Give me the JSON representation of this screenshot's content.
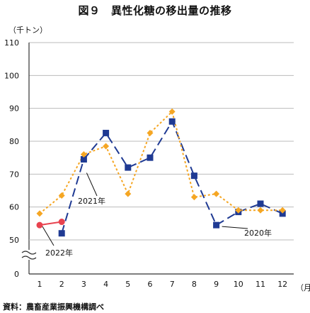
{
  "header": {
    "title": "図９　異性化糖の移出量の推移"
  },
  "axes": {
    "y_unit": "（千トン）",
    "x_unit": "（月）"
  },
  "footer": {
    "source": "資料：農畜産業振興機構調べ"
  },
  "colors": {
    "s2020": "#1f3a93",
    "s2021": "#f5a623",
    "s2022": "#e8434f",
    "grid": "#bbbbbb"
  },
  "chart_data": {
    "type": "line",
    "x": [
      1,
      2,
      3,
      4,
      5,
      6,
      7,
      8,
      9,
      10,
      11,
      12
    ],
    "xlim": [
      1,
      12
    ],
    "ylim": [
      50,
      110
    ],
    "y_axis_break": true,
    "y_ticks": [
      50,
      60,
      70,
      80,
      90,
      100,
      110
    ],
    "y_tick_labels": [
      "50",
      "60",
      "70",
      "80",
      "90",
      "100",
      "110"
    ],
    "zero_label": "0",
    "grid": true,
    "series": [
      {
        "name": "2020年",
        "style": "dashed",
        "marker": "square",
        "color": "#1f3a93",
        "values": [
          null,
          52,
          74.5,
          82.5,
          72,
          75,
          86,
          69.5,
          54.5,
          58.5,
          61,
          58
        ]
      },
      {
        "name": "2021年",
        "style": "dotted",
        "marker": "diamond",
        "color": "#f5a623",
        "values": [
          58,
          63.5,
          76,
          78.5,
          64,
          82.5,
          89,
          63,
          64,
          59,
          59,
          59
        ]
      },
      {
        "name": "2022年",
        "style": "solid",
        "marker": "circle",
        "color": "#e8434f",
        "values": [
          54.5,
          55.5,
          null,
          null,
          null,
          null,
          null,
          null,
          null,
          null,
          null,
          null
        ]
      }
    ]
  }
}
